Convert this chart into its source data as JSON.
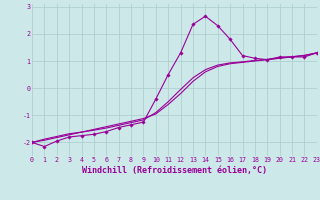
{
  "xlabel": "Windchill (Refroidissement éolien,°C)",
  "x": [
    0,
    1,
    2,
    3,
    4,
    5,
    6,
    7,
    8,
    9,
    10,
    11,
    12,
    13,
    14,
    15,
    16,
    17,
    18,
    19,
    20,
    21,
    22,
    23
  ],
  "line1": [
    -2.0,
    -2.15,
    -1.95,
    -1.8,
    -1.75,
    -1.7,
    -1.6,
    -1.45,
    -1.35,
    -1.25,
    -0.4,
    0.5,
    1.3,
    2.35,
    2.65,
    2.3,
    1.8,
    1.2,
    1.1,
    1.05,
    1.15,
    1.15,
    1.15,
    1.3
  ],
  "line2": [
    -2.0,
    -1.92,
    -1.82,
    -1.72,
    -1.62,
    -1.52,
    -1.42,
    -1.32,
    -1.22,
    -1.12,
    -0.95,
    -0.6,
    -0.2,
    0.25,
    0.6,
    0.8,
    0.9,
    0.95,
    1.0,
    1.05,
    1.1,
    1.15,
    1.2,
    1.3
  ],
  "line3": [
    -2.0,
    -1.88,
    -1.78,
    -1.68,
    -1.62,
    -1.55,
    -1.47,
    -1.37,
    -1.27,
    -1.17,
    -0.9,
    -0.5,
    -0.05,
    0.38,
    0.68,
    0.85,
    0.93,
    0.97,
    1.02,
    1.06,
    1.11,
    1.16,
    1.21,
    1.3
  ],
  "line_color": "#990099",
  "bg_color": "#cce8e8",
  "grid_color": "#aacccc",
  "ylim": [
    -2.5,
    3.1
  ],
  "xlim": [
    0,
    23
  ],
  "yticks": [
    -2,
    -1,
    0,
    1,
    2,
    3
  ],
  "xticks": [
    0,
    1,
    2,
    3,
    4,
    5,
    6,
    7,
    8,
    9,
    10,
    11,
    12,
    13,
    14,
    15,
    16,
    17,
    18,
    19,
    20,
    21,
    22,
    23
  ],
  "tick_fontsize": 4.8,
  "xlabel_fontsize": 6.0,
  "marker": "D",
  "markersize": 1.8,
  "linewidth": 0.8
}
